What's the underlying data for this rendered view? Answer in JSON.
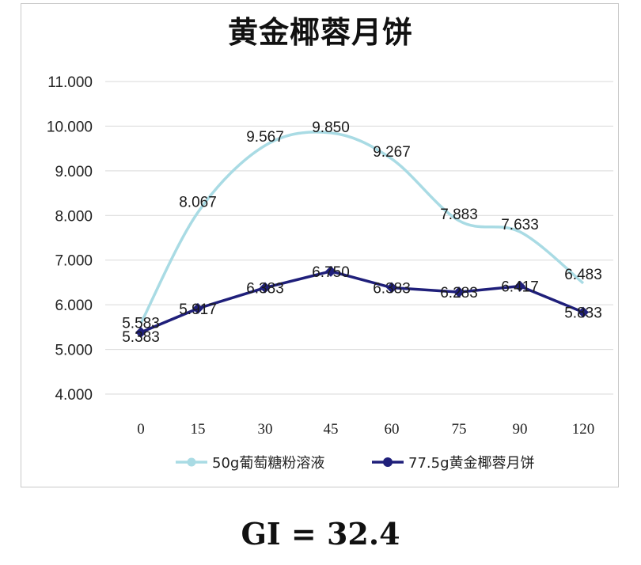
{
  "chart_data": {
    "type": "line",
    "title": "黄金椰蓉月饼",
    "categories": [
      "0",
      "15",
      "30",
      "45",
      "60",
      "75",
      "90",
      "120"
    ],
    "series": [
      {
        "name": "50g葡萄糖粉溶液",
        "color": "#a9dbe4",
        "values": [
          5.583,
          8.067,
          9.567,
          9.85,
          9.267,
          7.883,
          7.633,
          6.483
        ]
      },
      {
        "name": "77.5g黄金椰蓉月饼",
        "color": "#1f1f7a",
        "values": [
          5.383,
          5.917,
          6.383,
          6.75,
          6.383,
          6.283,
          6.417,
          5.833
        ]
      }
    ],
    "yticks": [
      "4.000",
      "5.000",
      "6.000",
      "7.000",
      "8.000",
      "9.000",
      "10.000",
      "11.000"
    ],
    "ylim": [
      4,
      11
    ],
    "grid": true,
    "legend": "bottom"
  },
  "footer": {
    "gi_text": "GI = 32.4"
  }
}
